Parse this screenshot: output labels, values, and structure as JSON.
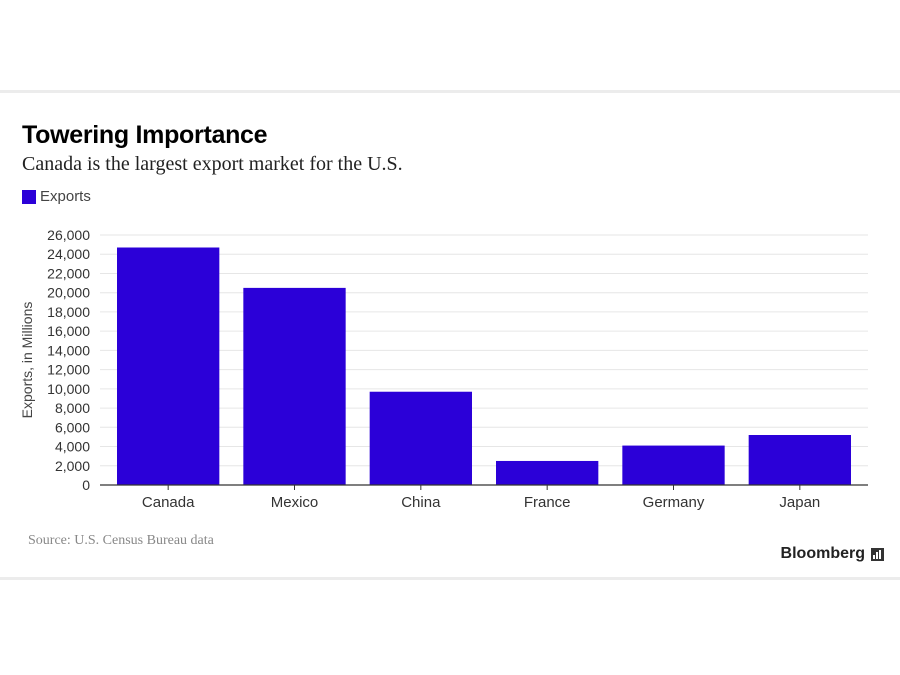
{
  "header": {
    "title": "Towering Importance",
    "subtitle": "Canada is the largest export market for the U.S."
  },
  "legend": {
    "label": "Exports"
  },
  "footer": {
    "source": "Source: U.S. Census Bureau data",
    "brand": "Bloomberg"
  },
  "colors": {
    "bar": "#2b00d8",
    "grid": "#e6e6e6",
    "axis": "#333333"
  },
  "chart_data": {
    "type": "bar",
    "title": "Towering Importance",
    "subtitle": "Canada is the largest export market for the U.S.",
    "categories": [
      "Canada",
      "Mexico",
      "China",
      "France",
      "Germany",
      "Japan"
    ],
    "series": [
      {
        "name": "Exports",
        "values": [
          24700,
          20500,
          9700,
          2500,
          4100,
          5200
        ]
      }
    ],
    "xlabel": "",
    "ylabel": "Exports, in Millions",
    "ylim": [
      0,
      26000
    ],
    "yticks": [
      0,
      2000,
      4000,
      6000,
      8000,
      10000,
      12000,
      14000,
      16000,
      18000,
      20000,
      22000,
      24000,
      26000
    ],
    "ytick_labels": [
      "0",
      "2,000",
      "4,000",
      "6,000",
      "8,000",
      "10,000",
      "12,000",
      "14,000",
      "16,000",
      "18,000",
      "20,000",
      "22,000",
      "24,000",
      "26,000"
    ],
    "grid": true,
    "legend_position": "top-left"
  }
}
